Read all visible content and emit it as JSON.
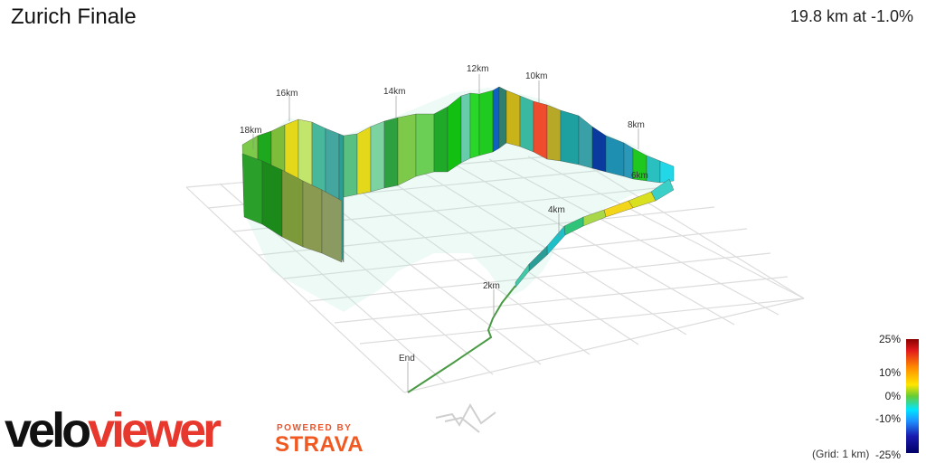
{
  "header": {
    "title": "Zurich Finale",
    "summary": "19.8 km at -1.0%"
  },
  "route": {
    "km_markers": [
      "End",
      "2km",
      "4km",
      "6km",
      "8km",
      "10km",
      "12km",
      "14km",
      "16km",
      "18km"
    ]
  },
  "legend": {
    "labels": [
      "25%",
      "10%",
      "0%",
      "-10%",
      "-25%"
    ],
    "grid_note": "(Grid: 1 km)"
  },
  "branding": {
    "logo_part1": "velo",
    "logo_part2": "viewer",
    "powered_by": "POWERED BY",
    "strava": "STRAVA"
  },
  "colors": {
    "logo_red": "#e8372c",
    "strava_orange": "#f05a22"
  }
}
